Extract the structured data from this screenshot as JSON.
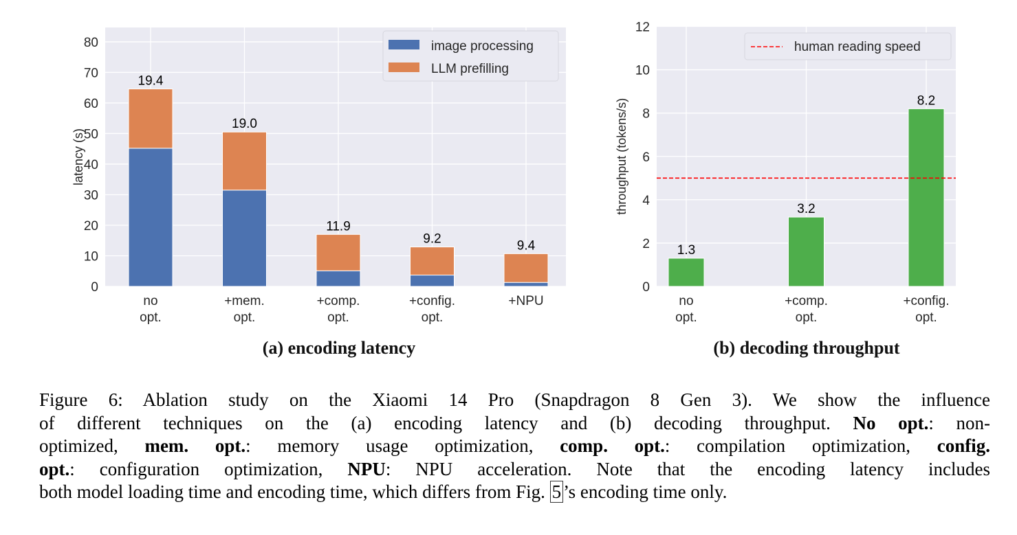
{
  "chart_data": [
    {
      "type": "bar",
      "stacked": true,
      "title": "(a) encoding latency",
      "xlabel": "",
      "ylabel": "latency (s)",
      "ylim": [
        0,
        84.7
      ],
      "yticks": [
        0,
        10,
        20,
        30,
        40,
        50,
        60,
        70,
        80
      ],
      "categories": [
        [
          "no",
          "opt."
        ],
        [
          "+mem.",
          "opt."
        ],
        [
          "+comp.",
          "opt."
        ],
        [
          "+config.",
          "opt."
        ],
        [
          "+NPU"
        ]
      ],
      "series": [
        {
          "name": "image processing",
          "color": "#4c72b0",
          "values": [
            45.2,
            31.5,
            5.1,
            3.7,
            1.3
          ],
          "labels": [
            "45.2",
            "31.5",
            "5.1",
            "3.7",
            "1.3"
          ]
        },
        {
          "name": "LLM prefilling",
          "color": "#dd8452",
          "values": [
            19.4,
            19.0,
            11.9,
            9.2,
            9.4
          ],
          "labels": [
            "19.4",
            "19.0",
            "11.9",
            "9.2",
            "9.4"
          ]
        }
      ],
      "legend": "top-right",
      "grid": true
    },
    {
      "type": "bar",
      "title": "(b) decoding throughput",
      "xlabel": "",
      "ylabel": "throughput (tokens/s)",
      "ylim": [
        0,
        12
      ],
      "yticks": [
        0,
        2,
        4,
        6,
        8,
        10,
        12
      ],
      "categories": [
        [
          "no",
          "opt."
        ],
        [
          "+comp.",
          "opt."
        ],
        [
          "+config.",
          "opt."
        ]
      ],
      "series": [
        {
          "name": "throughput",
          "color": "#4eae4b",
          "values": [
            1.3,
            3.2,
            8.2
          ],
          "labels": [
            "1.3",
            "3.2",
            "8.2"
          ]
        }
      ],
      "reference_line": {
        "name": "human reading speed",
        "value": 5,
        "color": "#ff0000",
        "style": "dashed"
      },
      "legend": "top-right",
      "grid": true
    }
  ],
  "caption": {
    "lines": [
      [
        {
          "t": "Figure 6:  Ablation study on the Xiaomi 14 Pro (Snapdragon 8 Gen 3).  We show the influence"
        }
      ],
      [
        {
          "t": "of different techniques on the (a) encoding latency and (b) decoding throughput. "
        },
        {
          "t": "No opt.",
          "b": true
        },
        {
          "t": ": non-"
        }
      ],
      [
        {
          "t": "optimized, "
        },
        {
          "t": "mem. opt.",
          "b": true
        },
        {
          "t": ": memory usage optimization, "
        },
        {
          "t": "comp. opt.",
          "b": true
        },
        {
          "t": ": compilation optimization, "
        },
        {
          "t": "config.",
          "b": true
        }
      ],
      [
        {
          "t": "opt.",
          "b": true
        },
        {
          "t": ": configuration optimization, "
        },
        {
          "t": "NPU",
          "b": true
        },
        {
          "t": ": NPU acceleration. Note that the encoding latency includes"
        }
      ],
      [
        {
          "t": "both model loading time and encoding time, which differs from Fig. "
        },
        {
          "t": "5",
          "box": true
        },
        {
          "t": "’s encoding time only."
        }
      ]
    ]
  },
  "colors": {
    "plot_bg": "#eaeaf2",
    "grid": "#ffffff"
  }
}
